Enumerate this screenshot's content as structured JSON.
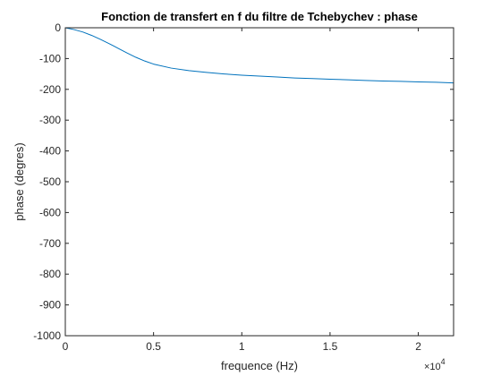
{
  "chart_data": {
    "type": "line",
    "title": "Fonction de transfert en f du filtre de Tchebychev : phase",
    "xlabel": "frequence (Hz)",
    "ylabel": "phase (degres)",
    "xlim": [
      0,
      22000
    ],
    "ylim": [
      -1000,
      0
    ],
    "x_ticks": [
      0,
      5000,
      10000,
      15000,
      20000
    ],
    "x_tick_labels": [
      "0",
      "0.5",
      "1",
      "1.5",
      "2"
    ],
    "x_exponent_label": "×10",
    "x_exponent_power": "4",
    "y_ticks": [
      0,
      -100,
      -200,
      -300,
      -400,
      -500,
      -600,
      -700,
      -800,
      -900,
      -1000
    ],
    "y_tick_labels": [
      "0",
      "-100",
      "-200",
      "-300",
      "-400",
      "-500",
      "-600",
      "-700",
      "-800",
      "-900",
      "-1000"
    ],
    "grid": false,
    "line_color": "#0072bd",
    "series": [
      {
        "x": [
          0,
          500,
          1000,
          1500,
          2000,
          2500,
          3000,
          3500,
          4000,
          4500,
          5000,
          6000,
          7000,
          8000,
          9000,
          10000,
          11000,
          12000,
          13000,
          14000,
          15000,
          16000,
          17000,
          18000,
          19000,
          20000,
          21000,
          22000
        ],
        "y": [
          0,
          -6,
          -14,
          -25,
          -38,
          -52,
          -67,
          -82,
          -96,
          -108,
          -118,
          -131,
          -139,
          -145,
          -150,
          -154,
          -157,
          -160,
          -163,
          -165,
          -167,
          -169,
          -171,
          -173,
          -174,
          -176,
          -177,
          -179
        ]
      }
    ]
  }
}
